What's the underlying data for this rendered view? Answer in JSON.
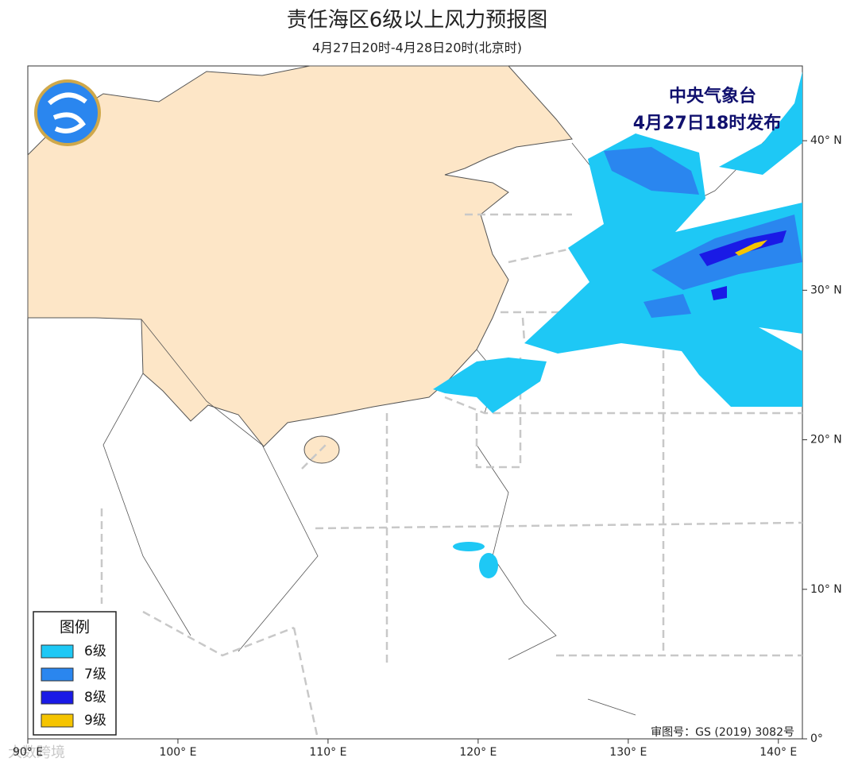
{
  "header": {
    "title": "责任海区6级以上风力预报图",
    "subtitle": "4月27日20时-4月28日20时(北京时)"
  },
  "issuer": {
    "name": "中央气象台",
    "time": "4月27日18时发布"
  },
  "map": {
    "lonlim": [
      90,
      141.6
    ],
    "latlim": [
      0,
      45
    ],
    "lon_ticks": [
      {
        "value": 90,
        "label": "90° E"
      },
      {
        "value": 100,
        "label": "100° E"
      },
      {
        "value": 110,
        "label": "110° E"
      },
      {
        "value": 120,
        "label": "120° E"
      },
      {
        "value": 130,
        "label": "130° E"
      },
      {
        "value": 140,
        "label": "140° E"
      }
    ],
    "lat_ticks": [
      {
        "value": 0,
        "label": "0°"
      },
      {
        "value": 10,
        "label": "10° N"
      },
      {
        "value": 20,
        "label": "20° N"
      },
      {
        "value": 30,
        "label": "30° N"
      },
      {
        "value": 40,
        "label": "40° N"
      }
    ],
    "map_number": "审图号：GS (2019) 3082号"
  },
  "legend": {
    "title": "图例",
    "items": [
      {
        "name": "6级",
        "color": "#1ec8f5"
      },
      {
        "name": "7级",
        "color": "#2a86ef"
      },
      {
        "name": "8级",
        "color": "#1a1ae6"
      },
      {
        "name": "9级",
        "color": "#f5c400"
      }
    ]
  },
  "watermark": "大数跨境"
}
